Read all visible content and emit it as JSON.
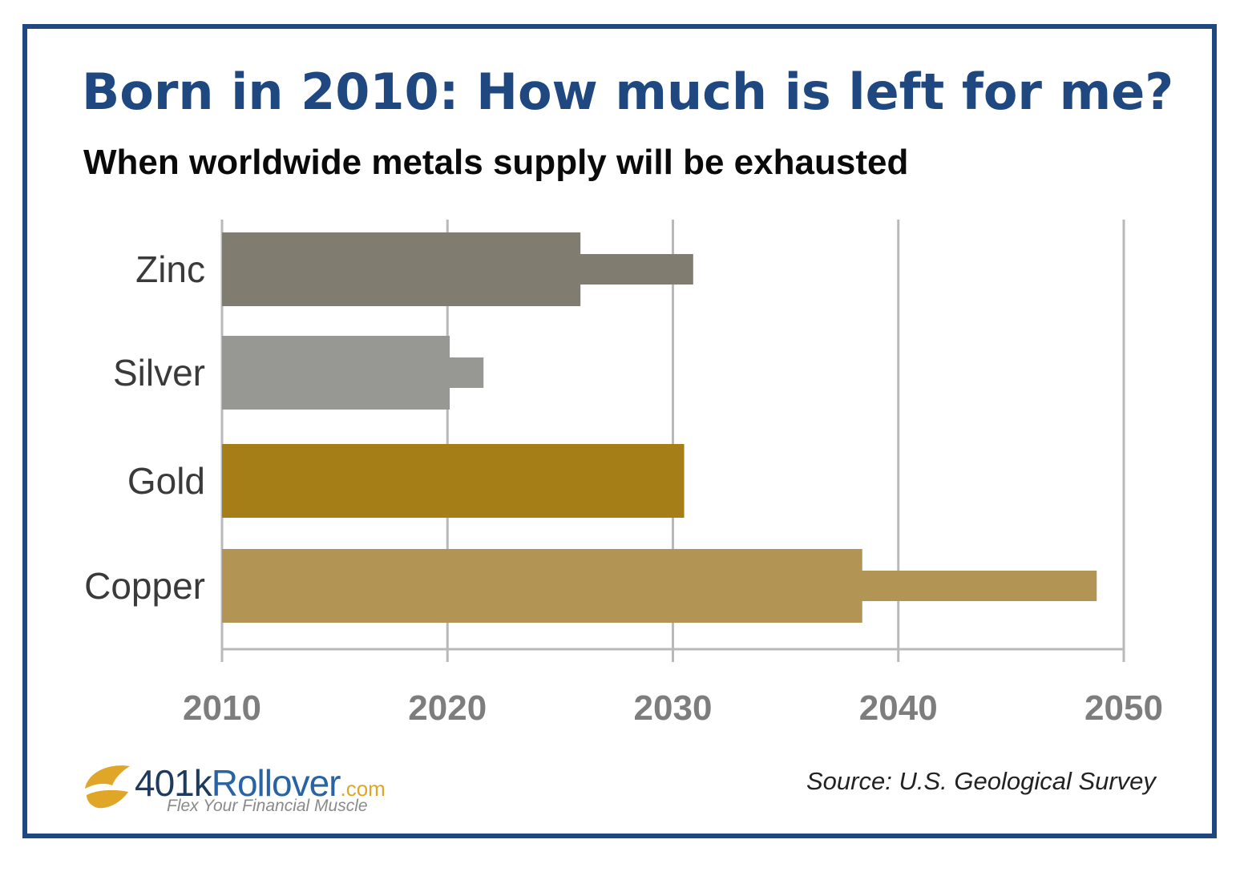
{
  "header": {
    "title": "Born in 2010: How much is left for me?",
    "subtitle": "When worldwide metals supply will be exhausted"
  },
  "chart_data": {
    "type": "bar",
    "orientation": "horizontal",
    "categories": [
      "Zinc",
      "Silver",
      "Gold",
      "Copper"
    ],
    "series": [
      {
        "values": [
          2025.9,
          2020.1,
          2030.5,
          2038.4
        ]
      },
      {
        "values": [
          2030.9,
          2021.6,
          2030.5,
          2048.8
        ]
      }
    ],
    "colors": [
      "#807c70",
      "#979893",
      "#a57e18",
      "#b29555"
    ],
    "xlim": [
      2010,
      2050
    ],
    "xticks": [
      "2010",
      "2020",
      "2030",
      "2040",
      "2050"
    ],
    "grid": true,
    "xlabel": "",
    "ylabel": ""
  },
  "footer": {
    "logo_brand_number": "401k",
    "logo_brand_word": "Rollover",
    "logo_brand_tld": ".com",
    "logo_tagline": "Flex Your Financial Muscle",
    "source": "Source: U.S. Geological Survey"
  },
  "theme": {
    "frame_color": "#1f4880",
    "title_color": "#1f4880",
    "grid_color": "#b9b9b9",
    "logo_accent": "#e0a627"
  }
}
